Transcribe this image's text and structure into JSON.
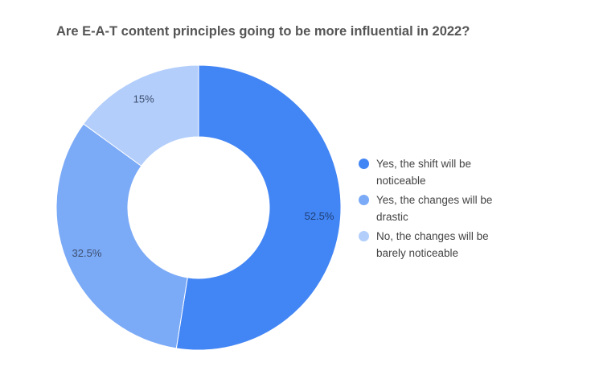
{
  "chart_data": {
    "type": "pie",
    "title": "Are E-A-T content principles going to be more influential in 2022?",
    "donut": true,
    "legend_position": "right",
    "categories": [
      "Yes, the shift will be noticeable",
      "Yes, the changes will be drastic",
      "No, the changes will be barely noticeable"
    ],
    "values": [
      52.5,
      32.5,
      15
    ],
    "value_labels": [
      "52.5%",
      "32.5%",
      "15%"
    ],
    "colors": [
      "#4285f4",
      "#7baaf7",
      "#b3cefb"
    ]
  }
}
